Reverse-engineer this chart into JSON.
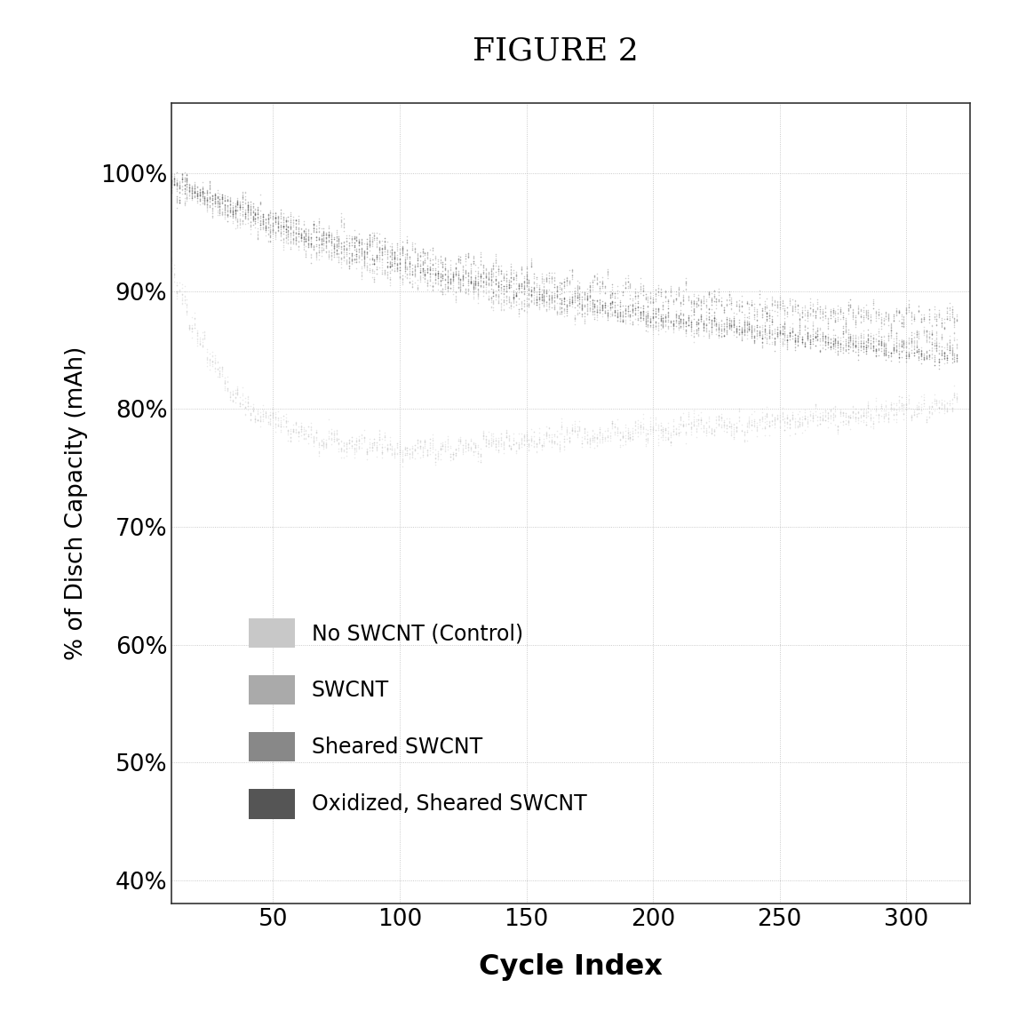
{
  "title": "FIGURE 2",
  "xlabel": "Cycle Index",
  "ylabel": "% of Disch Capacity (mAh)",
  "xlim": [
    10,
    325
  ],
  "ylim": [
    0.38,
    1.06
  ],
  "yticks": [
    0.4,
    0.5,
    0.6,
    0.7,
    0.8,
    0.9,
    1.0
  ],
  "xticks": [
    50,
    100,
    150,
    200,
    250,
    300
  ],
  "legend_labels": [
    "No SWCNT (Control)",
    "SWCNT",
    "Sheared SWCNT",
    "Oxidized, Sheared SWCNT"
  ],
  "legend_colors": [
    "#c8c8c8",
    "#aaaaaa",
    "#888888",
    "#555555"
  ],
  "scatter_colors": [
    "#c0c0c0",
    "#999999",
    "#777777",
    "#444444"
  ],
  "background_color": "#ffffff",
  "plot_bg_color": "#ffffff"
}
